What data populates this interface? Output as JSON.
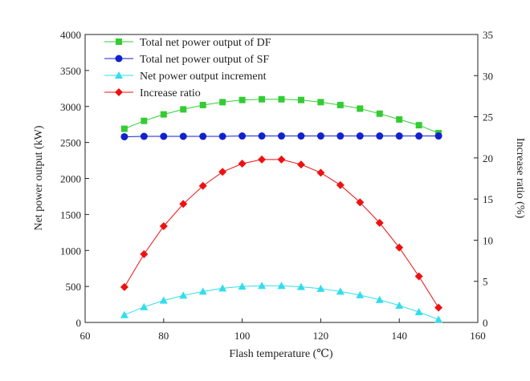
{
  "chart_data": {
    "type": "line",
    "title": "",
    "xlabel": "Flash temperature (℃)",
    "ylabel": "Net power output (kW)",
    "y2label": "Increase ratio (%)",
    "xlim": [
      60,
      160
    ],
    "ylim": [
      0,
      4000
    ],
    "y2lim": [
      0,
      35
    ],
    "x_ticks": [
      60,
      80,
      100,
      120,
      140,
      160
    ],
    "y_ticks": [
      0,
      500,
      1000,
      1500,
      2000,
      2500,
      3000,
      3500,
      4000
    ],
    "y2_ticks": [
      0,
      5,
      10,
      15,
      20,
      25,
      30,
      35
    ],
    "grid": false,
    "legend_position": "top-left",
    "x": [
      70,
      75,
      80,
      85,
      90,
      95,
      100,
      105,
      110,
      115,
      120,
      125,
      130,
      135,
      140,
      145,
      150
    ],
    "series": [
      {
        "name": "Total net power output of DF",
        "axis": "left",
        "color": "#33cc33",
        "marker": "square",
        "values": [
          2690,
          2800,
          2890,
          2960,
          3020,
          3060,
          3090,
          3100,
          3100,
          3090,
          3060,
          3020,
          2970,
          2900,
          2820,
          2740,
          2630
        ]
      },
      {
        "name": "Total net power output of SF",
        "axis": "left",
        "color": "#1122cc",
        "marker": "circle",
        "values": [
          2580,
          2585,
          2585,
          2585,
          2585,
          2585,
          2590,
          2590,
          2590,
          2590,
          2590,
          2590,
          2590,
          2590,
          2590,
          2590,
          2590
        ]
      },
      {
        "name": "Net power output increment",
        "axis": "left",
        "color": "#33ddee",
        "marker": "triangle",
        "values": [
          105,
          215,
          305,
          375,
          430,
          475,
          500,
          510,
          510,
          495,
          470,
          430,
          380,
          315,
          235,
          145,
          40
        ]
      },
      {
        "name": "Increase ratio",
        "axis": "right",
        "color": "#ee1111",
        "marker": "diamond",
        "values": [
          4.3,
          8.3,
          11.7,
          14.4,
          16.6,
          18.3,
          19.3,
          19.8,
          19.8,
          19.2,
          18.2,
          16.7,
          14.6,
          12.1,
          9.1,
          5.6,
          1.8
        ]
      }
    ]
  }
}
